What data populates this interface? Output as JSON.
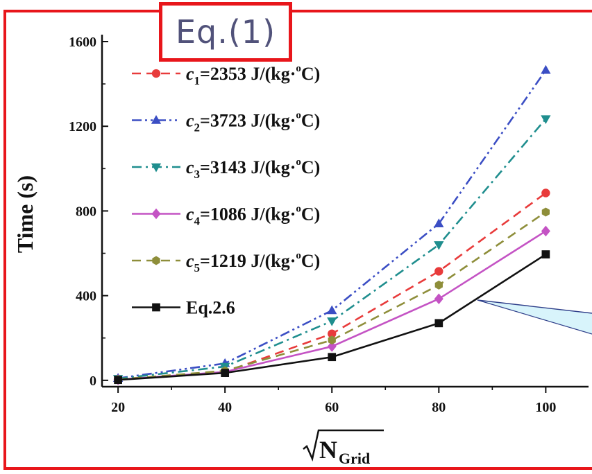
{
  "header": {
    "equation_label": "Eq.(1)"
  },
  "chart_data": {
    "type": "line",
    "title": "",
    "ylabel": "Time (s)",
    "xlabel": {
      "radical_base": "N",
      "subscript": "Grid"
    },
    "x": [
      20,
      40,
      60,
      80,
      100
    ],
    "xlim": [
      17,
      108
    ],
    "ylim": [
      -30,
      1600
    ],
    "xticks": [
      "20",
      "40",
      "60",
      "80",
      "100"
    ],
    "yticks": [
      "0",
      "400",
      "800",
      "1200",
      "1600"
    ],
    "grid": false,
    "legend_position": "top-left",
    "series": [
      {
        "sym": "c",
        "sub": "1",
        "value": "=2353 J/",
        "unit": "(kg·",
        "sup": "o",
        "unit_end": "C)",
        "marker": "circle",
        "dash": "dashed",
        "color": "#e83b3b",
        "values": [
          5,
          40,
          220,
          515,
          885
        ]
      },
      {
        "sym": "c",
        "sub": "2",
        "value": "=3723 J/",
        "unit": "(kg·",
        "sup": "o",
        "unit_end": "C)",
        "marker": "triangle-up",
        "dash": "dash-dot-dot",
        "color": "#3b4ec4",
        "values": [
          10,
          80,
          330,
          740,
          1465
        ]
      },
      {
        "sym": "c",
        "sub": "3",
        "value": "=3143 J/",
        "unit": "(kg·",
        "sup": "o",
        "unit_end": "C)",
        "marker": "triangle-down",
        "dash": "dash-dot",
        "color": "#1f8e8e",
        "values": [
          8,
          65,
          280,
          640,
          1235
        ]
      },
      {
        "sym": "c",
        "sub": "4",
        "value": "=1086 J/",
        "unit": "(kg·",
        "sup": "o",
        "unit_end": "C)",
        "marker": "diamond",
        "dash": "solid",
        "color": "#c453c4",
        "values": [
          3,
          40,
          160,
          385,
          705
        ]
      },
      {
        "sym": "c",
        "sub": "5",
        "value": "=1219 J/",
        "unit": "(kg·",
        "sup": "o",
        "unit_end": "C)",
        "marker": "hexagon",
        "dash": "dashed",
        "color": "#8e8e3a",
        "values": [
          4,
          45,
          190,
          450,
          795
        ]
      },
      {
        "name": "Eq.2.6",
        "marker": "square",
        "dash": "solid",
        "color": "#111111",
        "values": [
          2,
          35,
          110,
          270,
          595
        ]
      }
    ]
  }
}
